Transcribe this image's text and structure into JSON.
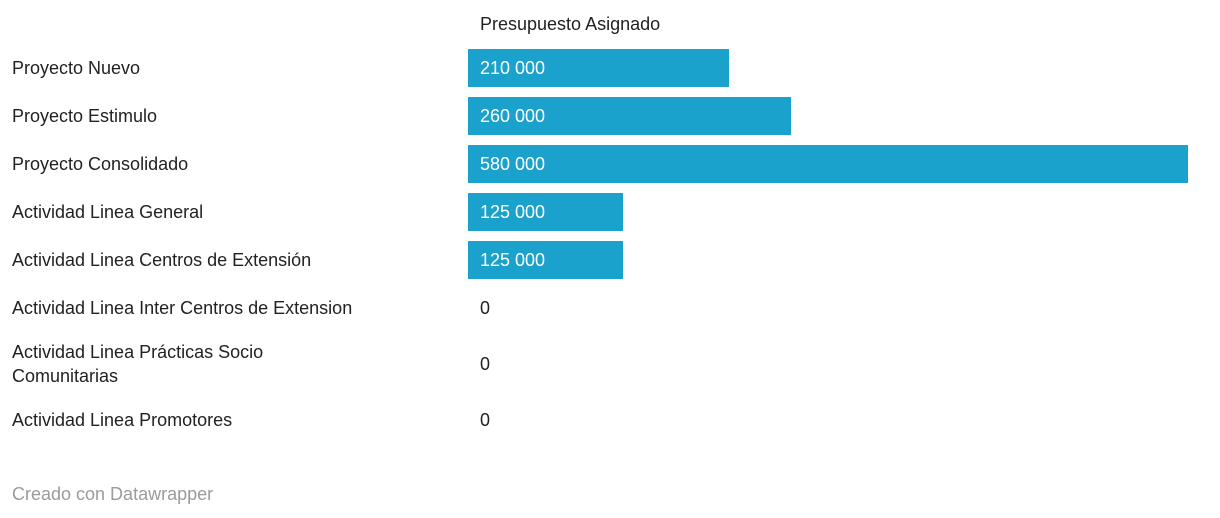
{
  "chart_data": {
    "type": "bar",
    "orientation": "horizontal",
    "title": "Presupuesto Asignado",
    "categories": [
      "Proyecto Nuevo",
      "Proyecto Estimulo",
      "Proyecto Consolidado",
      "Actividad Linea General",
      "Actividad Linea Centros de Extensión",
      "Actividad Linea Inter Centros de Extension",
      "Actividad Linea Prácticas Socio\nComunitarias",
      "Actividad Linea Promotores"
    ],
    "values": [
      210000,
      260000,
      580000,
      125000,
      125000,
      0,
      0,
      0
    ],
    "value_labels": [
      "210 000",
      "260 000",
      "580 000",
      "125 000",
      "125 000",
      "0",
      "0",
      "0"
    ],
    "xlim": [
      0,
      580000
    ],
    "grid": false,
    "legend_position": "none",
    "bar_color": "#1aa1cc",
    "label_color": "#222222",
    "value_inside_color": "#ffffff"
  },
  "footer": {
    "credit": "Creado con Datawrapper"
  }
}
